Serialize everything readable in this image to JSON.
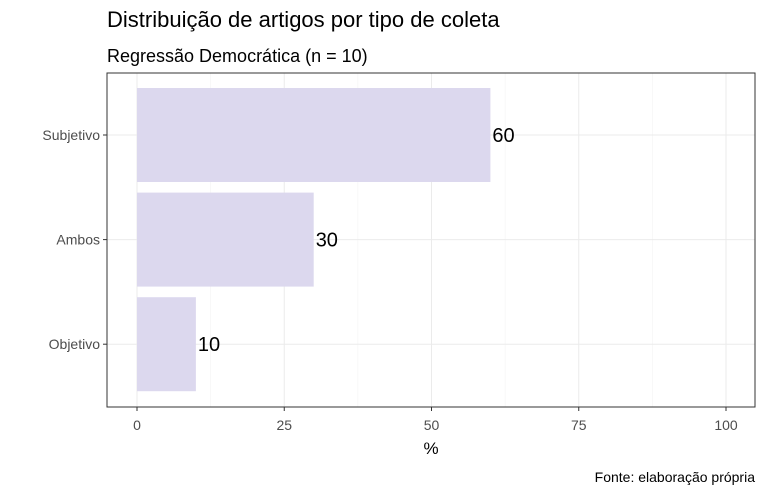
{
  "chart_data": {
    "type": "bar",
    "orientation": "horizontal",
    "title": "Distribuição de artigos por tipo de coleta",
    "subtitle": "Regressão Democrática (n = 10)",
    "xlabel": "%",
    "ylabel": "",
    "caption": "Fonte: elaboração própria",
    "categories": [
      "Subjetivo",
      "Ambos",
      "Objetivo"
    ],
    "values": [
      60,
      30,
      10
    ],
    "data_labels": [
      "60",
      "30",
      "10"
    ],
    "xlim": [
      0,
      100
    ],
    "xticks": [
      0,
      25,
      50,
      75,
      100
    ],
    "xtick_labels": [
      "0",
      "25",
      "50",
      "75",
      "100"
    ],
    "grid": true,
    "bar_color": "#dcd8ee"
  }
}
